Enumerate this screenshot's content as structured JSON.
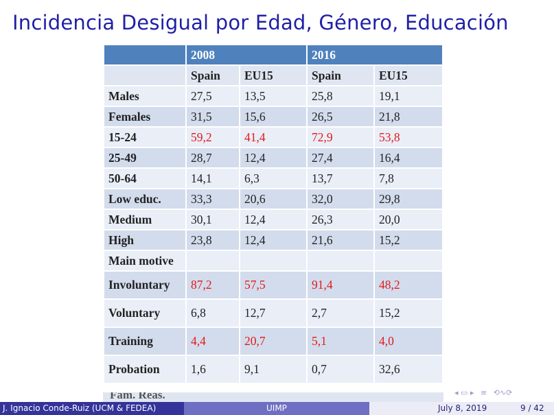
{
  "slide": {
    "title": "Incidencia Desigual por Edad, Género, Educación"
  },
  "table": {
    "year_headers": [
      "2008",
      "2016"
    ],
    "sub_headers": [
      "Spain",
      "EU15",
      "Spain",
      "EU15"
    ],
    "rows": [
      {
        "label": "Males",
        "values": [
          "27,5",
          "13,5",
          "25,8",
          "19,1"
        ],
        "highlight": false
      },
      {
        "label": "Females",
        "values": [
          "31,5",
          "15,6",
          "26,5",
          "21,8"
        ],
        "highlight": false
      },
      {
        "label": "15-24",
        "values": [
          "59,2",
          "41,4",
          "72,9",
          "53,8"
        ],
        "highlight": true
      },
      {
        "label": "25-49",
        "values": [
          "28,7",
          "12,4",
          "27,4",
          "16,4"
        ],
        "highlight": false
      },
      {
        "label": "50-64",
        "values": [
          "14,1",
          "6,3",
          "13,7",
          "7,8"
        ],
        "highlight": false
      },
      {
        "label": "Low educ.",
        "values": [
          "33,3",
          "20,6",
          "32,0",
          "29,8"
        ],
        "highlight": false
      },
      {
        "label": "Medium",
        "values": [
          "30,1",
          "12,4",
          "26,3",
          "20,0"
        ],
        "highlight": false
      },
      {
        "label": "High",
        "values": [
          "23,8",
          "12,4",
          "21,6",
          "15,2"
        ],
        "highlight": false
      },
      {
        "label": "Main motive",
        "values": [
          "",
          "",
          "",
          ""
        ],
        "highlight": false
      },
      {
        "label": "Involuntary",
        "values": [
          "87,2",
          "57,5",
          "91,4",
          "48,2"
        ],
        "highlight": true
      },
      {
        "label": "Voluntary",
        "values": [
          "6,8",
          "12,7",
          "2,7",
          "15,2"
        ],
        "highlight": false
      },
      {
        "label": "Training",
        "values": [
          "4,4",
          "20,7",
          "5,1",
          "4,0"
        ],
        "highlight": true
      },
      {
        "label": "Probation",
        "values": [
          "1,6",
          "9,1",
          "0,7",
          "32,6"
        ],
        "highlight": false
      }
    ],
    "cutoff_row_label": "Fam. Reas."
  },
  "footer": {
    "author": "J. Ignacio Conde-Ruiz (UCM & FEDEA)",
    "event": "UIMP",
    "date": "July 8, 2019",
    "page": "9 / 42"
  },
  "nav": {
    "icons": [
      "nav-prev-frame-icon",
      "nav-next-frame-icon",
      "nav-section-icon",
      "nav-search-icon"
    ]
  },
  "colors": {
    "title": "#1f1fa6",
    "header": "#4f81bd",
    "highlight": "#e3191b",
    "footer_dark": "#33339a",
    "footer_mid": "#6e6ec2",
    "footer_light": "#ececf7"
  }
}
